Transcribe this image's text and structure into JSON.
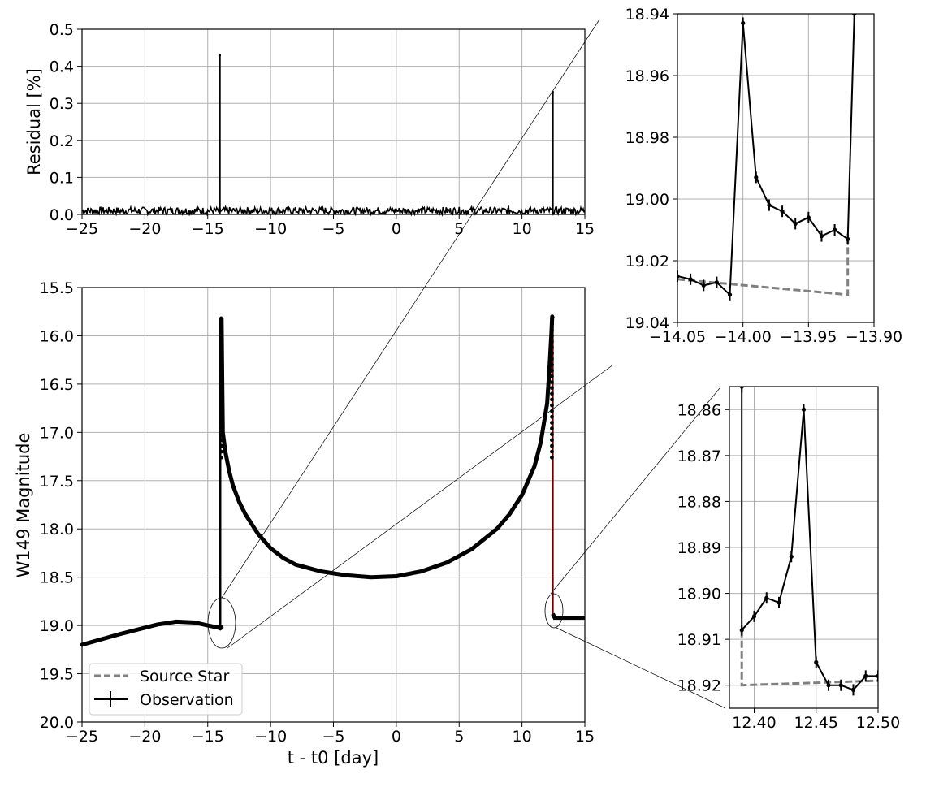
{
  "chart_data": [
    {
      "id": "residual",
      "type": "line",
      "xlabel": "",
      "ylabel": "Residual [%]",
      "xlim": [
        -25,
        15
      ],
      "ylim": [
        0,
        0.5
      ],
      "xticks": [
        -25,
        -20,
        -15,
        -10,
        -5,
        0,
        5,
        10,
        15
      ],
      "yticks": [
        0.0,
        0.1,
        0.2,
        0.3,
        0.4,
        0.5
      ],
      "xtick_labels": [
        "−25",
        "−20",
        "−15",
        "−10",
        "−5",
        "0",
        "5",
        "10",
        "15"
      ],
      "ytick_labels": [
        "0.0",
        "0.1",
        "0.2",
        "0.3",
        "0.4",
        "0.5"
      ],
      "grid": true,
      "baseline_noise": [
        0,
        0.02
      ],
      "spikes": [
        {
          "x": -14.05,
          "y": 0.43
        },
        {
          "x": 12.44,
          "y": 0.33
        }
      ]
    },
    {
      "id": "main",
      "type": "line",
      "xlabel": "t - t0 [day]",
      "ylabel": "W149 Magnitude",
      "xlim": [
        -25,
        15
      ],
      "ylim": [
        20.0,
        15.5
      ],
      "y_inverted": true,
      "xticks": [
        -25,
        -20,
        -15,
        -10,
        -5,
        0,
        5,
        10,
        15
      ],
      "yticks": [
        15.5,
        16.0,
        16.5,
        17.0,
        17.5,
        18.0,
        18.5,
        19.0,
        19.5,
        20.0
      ],
      "xtick_labels": [
        "−25",
        "−20",
        "−15",
        "−10",
        "−5",
        "0",
        "5",
        "10",
        "15"
      ],
      "ytick_labels": [
        "15.5",
        "16.0",
        "16.5",
        "17.0",
        "17.5",
        "18.0",
        "18.5",
        "19.0",
        "19.5",
        "20.0"
      ],
      "grid": true,
      "legend_position": "lower-left",
      "series": [
        {
          "name": "Source Star",
          "style": "dashed",
          "color": "#808080"
        },
        {
          "name": "Observation",
          "style": "solid-errorbar",
          "color": "#000000"
        }
      ],
      "source_curve": {
        "x": [
          -25,
          -22,
          -19,
          -17.5,
          -16,
          -15,
          -14.2,
          -14.0,
          -13.9
        ],
        "y": [
          19.2,
          19.09,
          18.99,
          18.96,
          18.97,
          19.0,
          19.02,
          19.03,
          19.02
        ]
      },
      "observation_curve": {
        "x": [
          -13.9,
          -13.85,
          -13.8,
          -13.6,
          -13.3,
          -13,
          -12.5,
          -12,
          -11,
          -10,
          -9,
          -8,
          -6,
          -4,
          -2,
          0,
          2,
          4,
          6,
          8,
          9,
          10,
          11,
          11.5,
          12,
          12.2,
          12.35,
          12.4,
          12.44
        ],
        "y": [
          15.82,
          16.4,
          17.0,
          17.2,
          17.4,
          17.55,
          17.72,
          17.85,
          18.05,
          18.2,
          18.3,
          18.37,
          18.44,
          18.48,
          18.5,
          18.49,
          18.44,
          18.35,
          18.21,
          18.0,
          17.85,
          17.65,
          17.35,
          17.1,
          16.7,
          16.3,
          15.95,
          15.8,
          15.82
        ]
      },
      "tail_curve": {
        "x": [
          12.45,
          12.6,
          13,
          14,
          15
        ],
        "y": [
          18.88,
          18.92,
          18.92,
          18.92,
          18.92
        ]
      }
    },
    {
      "id": "zoom-left",
      "type": "line",
      "xlim": [
        -14.05,
        -13.9
      ],
      "ylim": [
        19.04,
        18.94
      ],
      "y_inverted": true,
      "xticks": [
        -14.05,
        -14.0,
        -13.95,
        -13.9
      ],
      "yticks": [
        18.94,
        18.96,
        18.98,
        19.0,
        19.02,
        19.04
      ],
      "xtick_labels": [
        "−14.05",
        "−14.00",
        "−13.95",
        "−13.90"
      ],
      "ytick_labels": [
        "18.94",
        "18.96",
        "18.98",
        "19.00",
        "19.02",
        "19.04"
      ],
      "grid": true,
      "observation": {
        "x": [
          -14.05,
          -14.04,
          -14.03,
          -14.02,
          -14.01,
          -14.0,
          -13.99,
          -13.98,
          -13.97,
          -13.96,
          -13.95,
          -13.94,
          -13.93,
          -13.92,
          -13.915
        ],
        "y": [
          19.025,
          19.026,
          19.028,
          19.027,
          19.031,
          18.943,
          18.993,
          19.002,
          19.004,
          19.008,
          19.006,
          19.012,
          19.01,
          19.013,
          18.94
        ]
      },
      "source": {
        "x": [
          -14.05,
          -13.92,
          -13.92
        ],
        "y": [
          19.026,
          19.031,
          19.013
        ]
      }
    },
    {
      "id": "zoom-right",
      "type": "line",
      "xlim": [
        12.38,
        12.5
      ],
      "ylim": [
        18.925,
        18.855
      ],
      "y_inverted": true,
      "xticks": [
        12.4,
        12.45,
        12.5
      ],
      "yticks": [
        18.86,
        18.87,
        18.88,
        18.89,
        18.9,
        18.91,
        18.92
      ],
      "xtick_labels": [
        "12.40",
        "12.45",
        "12.50"
      ],
      "ytick_labels": [
        "18.86",
        "18.87",
        "18.88",
        "18.89",
        "18.90",
        "18.91",
        "18.92"
      ],
      "grid": true,
      "observation": {
        "x": [
          12.39,
          12.39,
          12.4,
          12.41,
          12.42,
          12.43,
          12.44,
          12.45,
          12.46,
          12.47,
          12.48,
          12.49,
          12.5
        ],
        "y": [
          18.855,
          18.908,
          18.905,
          18.901,
          18.902,
          18.892,
          18.86,
          18.915,
          18.92,
          18.92,
          18.921,
          18.918,
          18.918
        ]
      },
      "source": {
        "x": [
          12.39,
          12.39,
          12.5
        ],
        "y": [
          18.908,
          18.92,
          18.919
        ]
      }
    }
  ]
}
